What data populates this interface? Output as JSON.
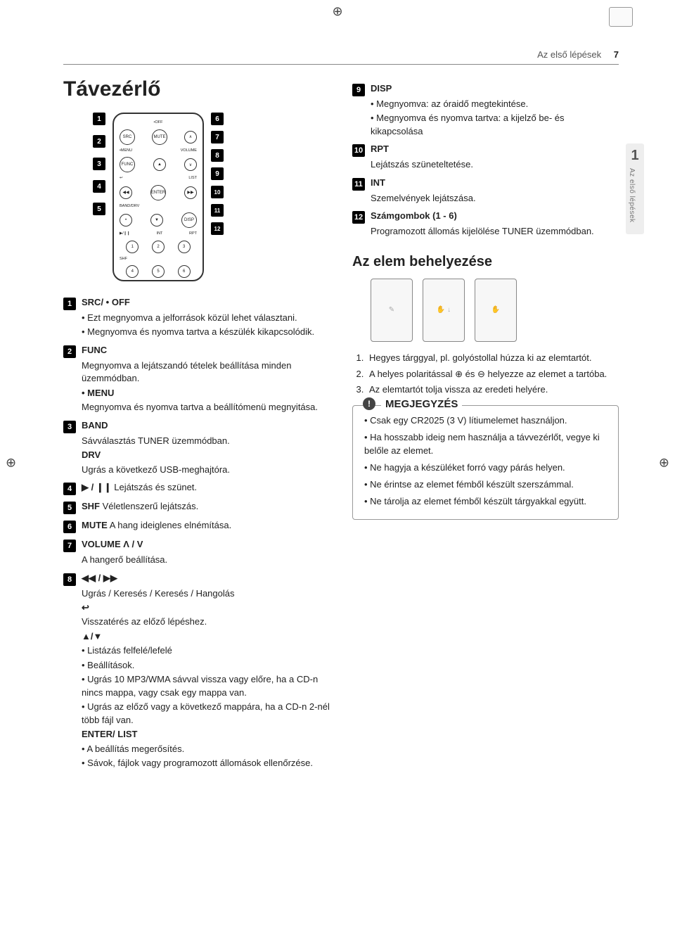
{
  "header": {
    "section": "Az első lépések",
    "page": "7"
  },
  "title": "Távezérlő",
  "side_tab": {
    "num": "1",
    "label": "Az első lépések"
  },
  "remote_callouts_left": [
    "1",
    "2",
    "3",
    "4",
    "5"
  ],
  "remote_callouts_right": [
    "6",
    "7",
    "8",
    "9",
    "10",
    "11",
    "12"
  ],
  "items_left": [
    {
      "n": "1",
      "lead": "SRC/ • OFF",
      "lines": [
        "• Ezt megnyomva a jelforrások közül lehet választani.",
        "• Megnyomva és nyomva tartva a készülék kikapcsolódik."
      ]
    },
    {
      "n": "2",
      "lead": "FUNC",
      "lines": [
        "Megnyomva a lejátszandó tételek beállítása minden üzemmódban.",
        "• MENU",
        "Megnyomva és nyomva tartva a beállítómenü megnyitása."
      ],
      "bold_idx": [
        1
      ]
    },
    {
      "n": "3",
      "lead": "BAND",
      "lines": [
        "Sávválasztás TUNER üzemmódban.",
        "DRV",
        "Ugrás a következő USB-meghajtóra."
      ],
      "bold_idx": [
        1
      ]
    },
    {
      "n": "4",
      "lead_glyph": "▶ / ❙❙",
      "tail": " Lejátszás és szünet."
    },
    {
      "n": "5",
      "lead": "SHF",
      "tail": " Véletlenszerű lejátszás."
    },
    {
      "n": "6",
      "lead": "MUTE",
      "tail": " A hang ideiglenes elnémítása."
    },
    {
      "n": "7",
      "lead": "VOLUME Λ / V",
      "lines": [
        "A hangerő beállítása."
      ]
    },
    {
      "n": "8",
      "lead_glyph": "◀◀ / ▶▶",
      "lines": [
        "Ugrás / Keresés / Keresés / Hangolás",
        "↩",
        "Visszatérés az előző lépéshez.",
        "▲/▼",
        "• Listázás felfelé/lefelé",
        "• Beállítások.",
        "• Ugrás 10 MP3/WMA sávval vissza vagy előre, ha a CD-n nincs mappa, vagy csak egy mappa van.",
        "• Ugrás az előző vagy a következő mappára, ha a CD-n 2-nél több fájl van.",
        "ENTER/ LIST",
        "• A beállítás megerősítés.",
        "• Sávok, fájlok vagy programozott állomások ellenőrzése."
      ],
      "bold_idx": [
        1,
        3,
        8
      ]
    }
  ],
  "items_right": [
    {
      "n": "9",
      "lead": "DISP",
      "lines": [
        "• Megnyomva: az óraidő megtekintése.",
        "• Megnyomva és nyomva tartva: a kijelző be- és kikapcsolása"
      ]
    },
    {
      "n": "10",
      "lead": "RPT",
      "lines": [
        "Lejátszás szüneteltetése."
      ]
    },
    {
      "n": "11",
      "lead": "INT",
      "lines": [
        "Szemelvények lejátszása."
      ]
    },
    {
      "n": "12",
      "lead": "Számgombok (1 - 6)",
      "lines": [
        "Programozott állomás kijelölése TUNER üzemmódban."
      ]
    }
  ],
  "battery_heading": "Az elem behelyezése",
  "steps": [
    "Hegyes tárggyal, pl. golyóstollal húzza ki az elemtartót.",
    "A helyes polaritással ⊕ és ⊖ helyezze az elemet a tartóba.",
    "Az elemtartót tolja vissza az eredeti helyére."
  ],
  "note_title": "MEGJEGYZÉS",
  "notes": [
    "Csak egy CR2025 (3 V) lítiumelemet használjon.",
    "Ha hosszabb ideig nem használja a távvezérlőt, vegye ki belőle az elemet.",
    "Ne hagyja a készüléket forró vagy párás helyen.",
    "Ne érintse az elemet fémből készült szerszámmal.",
    "Ne tárolja az elemet fémből készült tárgyakkal együtt."
  ],
  "remote_labels": {
    "off": "•OFF",
    "src": "SRC",
    "mute": "MUTE",
    "menu": "•MENU",
    "func": "FUNC",
    "volume": "VOLUME",
    "list": "LIST",
    "enter": "ENTER",
    "banddrv": "BAND/DRV",
    "disp": "DISP",
    "int": "INT",
    "rpt": "RPT",
    "shf": "SHF",
    "play": "▶/❙❙"
  }
}
